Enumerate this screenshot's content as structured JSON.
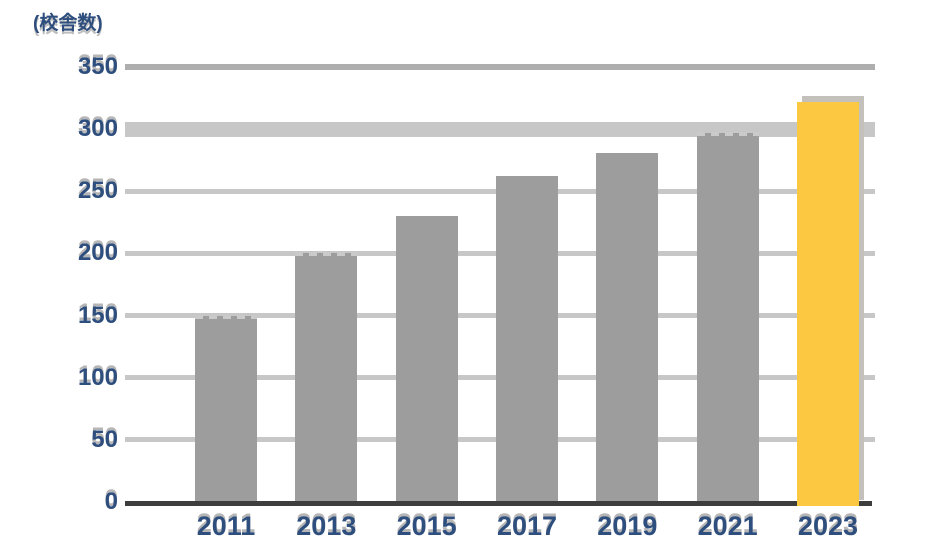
{
  "chart_data": {
    "type": "bar",
    "title": "",
    "unit_label": "(校舎数)",
    "categories": [
      "2011",
      "2013",
      "2015",
      "2017",
      "2019",
      "2021",
      "2023"
    ],
    "values": [
      150,
      200,
      230,
      262,
      281,
      297,
      322
    ],
    "highlight_category": "2023",
    "highlight_index": 6,
    "xlabel": "",
    "ylabel": "",
    "ylim": [
      0,
      350
    ],
    "yticks": [
      0,
      50,
      100,
      150,
      200,
      250,
      300,
      350
    ],
    "grid": "horizontal",
    "legend": "none",
    "colors": {
      "bar": "#9D9D9D",
      "highlight_bar": "#FDC841",
      "highlight_backing": "#C4C0BC",
      "gridline": "#C7C7C7",
      "top_gridline": "#AEAEAE",
      "axis_line": "#3D3D3D",
      "label_text": "#2E4E7E",
      "dash_fragment": "#CACACA"
    }
  }
}
